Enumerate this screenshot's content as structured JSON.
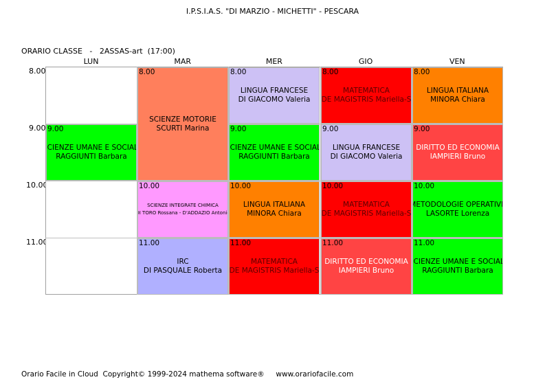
{
  "header": {
    "school": "I.P.S.I.A.S. \"DI MARZIO - MICHETTI\" - PESCARA",
    "class_heading": "ORARIO CLASSE   -   2ASSAS-art  (17:00)"
  },
  "days": [
    "LUN",
    "MAR",
    "MER",
    "GIO",
    "VEN"
  ],
  "hours": [
    "8.00",
    "9.00",
    "10.00",
    "11.00"
  ],
  "lessons": [
    {
      "day": 0,
      "start_slot": 1,
      "span": 1,
      "start": "9.00",
      "subject": "SCIENZE UMANE E SOCIALI",
      "teacher": "RAGGIUNTI Barbara",
      "color": "#00ff00",
      "text_color": "#000000"
    },
    {
      "day": 1,
      "start_slot": 0,
      "span": 2,
      "start": "8.00",
      "subject": "SCIENZE MOTORIE",
      "teacher": "SCURTI Marina",
      "color": "#ff7f5c",
      "text_color": "#000000"
    },
    {
      "day": 1,
      "start_slot": 2,
      "span": 1,
      "start": "10.00",
      "subject": "SCIENZE INTEGRATE CHIMICA",
      "teacher": "DI TORO Rossana - D'ADDAZIO Antonio",
      "color": "#ff99ff",
      "text_color": "#000000",
      "small": true
    },
    {
      "day": 1,
      "start_slot": 3,
      "span": 1,
      "start": "11.00",
      "subject": "IRC",
      "teacher": "DI PASQUALE Roberta",
      "color": "#b0b0ff",
      "text_color": "#000000"
    },
    {
      "day": 2,
      "start_slot": 0,
      "span": 1,
      "start": "8.00",
      "subject": "LINGUA FRANCESE",
      "teacher": "DI GIACOMO Valeria",
      "color": "#cdc1f5",
      "text_color": "#000000"
    },
    {
      "day": 2,
      "start_slot": 1,
      "span": 1,
      "start": "9.00",
      "subject": "SCIENZE UMANE E SOCIALI",
      "teacher": "RAGGIUNTI Barbara",
      "color": "#00ff00",
      "text_color": "#000000"
    },
    {
      "day": 2,
      "start_slot": 2,
      "span": 1,
      "start": "10.00",
      "subject": "LINGUA ITALIANA",
      "teacher": "MINORA Chiara",
      "color": "#ff8000",
      "text_color": "#000000"
    },
    {
      "day": 2,
      "start_slot": 3,
      "span": 1,
      "start": "11.00",
      "subject": "MATEMATICA",
      "teacher": "DE MAGISTRIS Mariella-S",
      "color": "#ff0000",
      "text_color": "#5a0000"
    },
    {
      "day": 3,
      "start_slot": 0,
      "span": 1,
      "start": "8.00",
      "subject": "MATEMATICA",
      "teacher": "DE MAGISTRIS Mariella-S",
      "color": "#ff0000",
      "text_color": "#5a0000"
    },
    {
      "day": 3,
      "start_slot": 1,
      "span": 1,
      "start": "9.00",
      "subject": "LINGUA FRANCESE",
      "teacher": "DI GIACOMO Valeria",
      "color": "#cdc1f5",
      "text_color": "#000000"
    },
    {
      "day": 3,
      "start_slot": 2,
      "span": 1,
      "start": "10.00",
      "subject": "MATEMATICA",
      "teacher": "DE MAGISTRIS Mariella-S",
      "color": "#ff0000",
      "text_color": "#5a0000"
    },
    {
      "day": 3,
      "start_slot": 3,
      "span": 1,
      "start": "11.00",
      "subject": "DIRITTO ED ECONOMIA",
      "teacher": "IAMPIERI Bruno",
      "color": "#ff4444",
      "text_color": "#ffffff"
    },
    {
      "day": 4,
      "start_slot": 0,
      "span": 1,
      "start": "8.00",
      "subject": "LINGUA ITALIANA",
      "teacher": "MINORA Chiara",
      "color": "#ff8000",
      "text_color": "#000000"
    },
    {
      "day": 4,
      "start_slot": 1,
      "span": 1,
      "start": "9.00",
      "subject": "DIRITTO ED ECONOMIA",
      "teacher": "IAMPIERI Bruno",
      "color": "#ff4444",
      "text_color": "#ffffff"
    },
    {
      "day": 4,
      "start_slot": 2,
      "span": 1,
      "start": "10.00",
      "subject": "METODOLOGIE OPERATIVE",
      "teacher": "LASORTE Lorenza",
      "color": "#00ff00",
      "text_color": "#000000"
    },
    {
      "day": 4,
      "start_slot": 3,
      "span": 1,
      "start": "11.00",
      "subject": "SCIENZE UMANE E SOCIALI",
      "teacher": "RAGGIUNTI Barbara",
      "color": "#00ff00",
      "text_color": "#000000"
    }
  ],
  "footer": {
    "text": "Orario Facile in Cloud  Copyright© 1999-2024 mathema software®     www.orariofacile.com"
  }
}
